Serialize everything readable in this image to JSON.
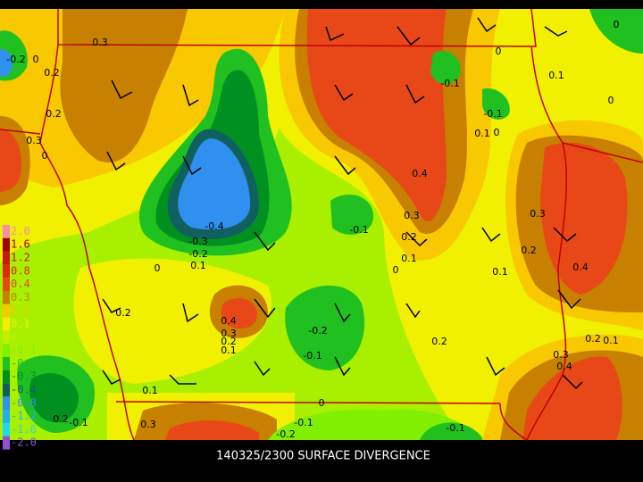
{
  "caption": "140325/2300 SURFACE DIVERGENCE",
  "legend": [
    {
      "label": "2.0",
      "color": "#f090b0"
    },
    {
      "label": "1.6",
      "color": "#a00000"
    },
    {
      "label": "1.2",
      "color": "#c81818"
    },
    {
      "label": "0.8",
      "color": "#e02810"
    },
    {
      "label": "0.4",
      "color": "#e84818"
    },
    {
      "label": "0.3",
      "color": "#c88000"
    },
    {
      "label": "0.2",
      "color": "#f8c800"
    },
    {
      "label": "0.1",
      "color": "#f0f000"
    },
    {
      "label": "0",
      "color": "#c0f000"
    },
    {
      "label": "-0.1",
      "color": "#80f000"
    },
    {
      "label": "-0.2",
      "color": "#20c020"
    },
    {
      "label": "-0.3",
      "color": "#009020"
    },
    {
      "label": "-0.4",
      "color": "#106060"
    },
    {
      "label": "-0.8",
      "color": "#3090f0"
    },
    {
      "label": "-1.2",
      "color": "#20b0f0"
    },
    {
      "label": "-1.6",
      "color": "#20d8f0"
    },
    {
      "label": "-2.0",
      "color": "#9050d0"
    }
  ],
  "contour_labels": [
    "0.3",
    "-0.2",
    "0",
    "0.2",
    "0.2",
    "0.3",
    "0",
    "-0.4",
    "-0.3",
    "-0.2",
    "0.1",
    "0",
    "0.2",
    "0.4",
    "0.3",
    "0.2",
    "0.1",
    "-0.2",
    "-0.1",
    "0.1",
    "0.3",
    "0.2",
    "-0.1",
    "-0.1",
    "0",
    "0.1",
    "0.2",
    "0.3",
    "0.4",
    "-0.1",
    "0",
    "-0.1",
    "0.1",
    "0",
    "0.1",
    "0",
    "0",
    "0.3",
    "0.2",
    "0.1",
    "0.4",
    "0.2",
    "0.2",
    "0.1",
    "0.3",
    "0.4",
    "0",
    "-0.1",
    "-0.2",
    "-0.1"
  ]
}
